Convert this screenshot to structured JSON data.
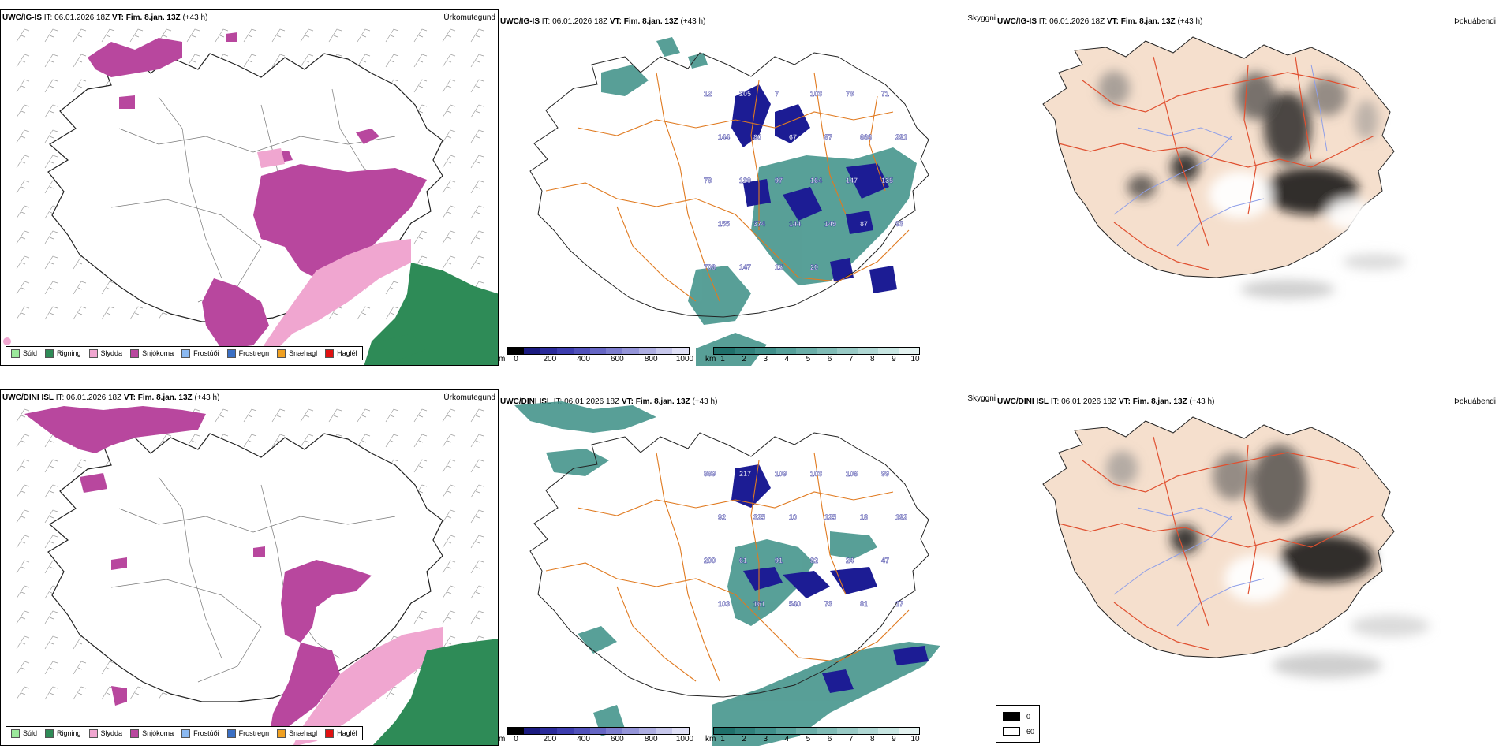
{
  "rows": [
    {
      "model": "UWC/IG-IS",
      "it_label": "IT:",
      "it_value": "06.01.2026 18Z",
      "vt_label": "VT:",
      "vt_value": "Fim. 8.jan. 13Z",
      "lead": "(+43 h)"
    },
    {
      "model": "UWC/DINI ISL",
      "it_label": "IT:",
      "it_value": "06.01.2026 18Z",
      "vt_label": "VT:",
      "vt_value": "Fim. 8.jan. 13Z",
      "lead": "(+43 h)"
    }
  ],
  "titles": {
    "precip": "Úrkomutegund",
    "visibility": "Skyggni",
    "fog": "Þokuábendi"
  },
  "precip_legend": [
    {
      "label": "Súld",
      "color": "#9be89b"
    },
    {
      "label": "Rigning",
      "color": "#2e8b57"
    },
    {
      "label": "Slydda",
      "color": "#f0a6d0"
    },
    {
      "label": "Snjókoma",
      "color": "#b8479e"
    },
    {
      "label": "Frostúði",
      "color": "#8ab8f0"
    },
    {
      "label": "Frostregn",
      "color": "#3a6fc4"
    },
    {
      "label": "Snæhagl",
      "color": "#f0a020"
    },
    {
      "label": "Haglél",
      "color": "#e01010"
    }
  ],
  "m_scale": {
    "unit": "m",
    "ticks": [
      "0",
      "200",
      "400",
      "600",
      "800",
      "1000"
    ],
    "colors": [
      "#000000",
      "#1a1a80",
      "#2a2a9a",
      "#3c3cae",
      "#5050ba",
      "#6666c4",
      "#7c7cce",
      "#9494d8",
      "#aeaee2",
      "#c8c8ec",
      "#e0e0f6"
    ]
  },
  "km_scale": {
    "unit": "km",
    "ticks": [
      "1",
      "2",
      "3",
      "4",
      "5",
      "6",
      "7",
      "8",
      "9",
      "10"
    ],
    "colors": [
      "#1f6f6a",
      "#2f7f7a",
      "#3f8f8a",
      "#55a09a",
      "#6aaea8",
      "#80bcb6",
      "#98cac5",
      "#b0d8d4",
      "#c8e6e2",
      "#e4f2f0"
    ]
  },
  "fog_legend": {
    "black": "0",
    "white": "60"
  },
  "vis_labels": [
    [
      "12",
      "205",
      "7",
      "103",
      "73",
      "71",
      "144",
      "80",
      "67",
      "87",
      "666",
      "291",
      "78",
      "130",
      "97",
      "164",
      "147",
      "135",
      "155",
      "374",
      "144",
      "149",
      "87",
      "93",
      "706",
      "147",
      "15",
      "20"
    ],
    [
      "889",
      "217",
      "109",
      "103",
      "106",
      "99",
      "92",
      "325",
      "10",
      "125",
      "18",
      "192",
      "200",
      "61",
      "91",
      "82",
      "24",
      "47",
      "103",
      "161",
      "540",
      "73",
      "81",
      "17"
    ]
  ],
  "colors": {
    "snow": "#b8479e",
    "sleet": "#f0a6d0",
    "rain": "#2e8b57",
    "roads": "#e07a20",
    "vis_teal": "#3b8f86",
    "vis_navy": "#1c1c94",
    "land_fog": "#f5dfcd",
    "fog_roads": "#e05030",
    "rivers": "#8f9fe8"
  }
}
